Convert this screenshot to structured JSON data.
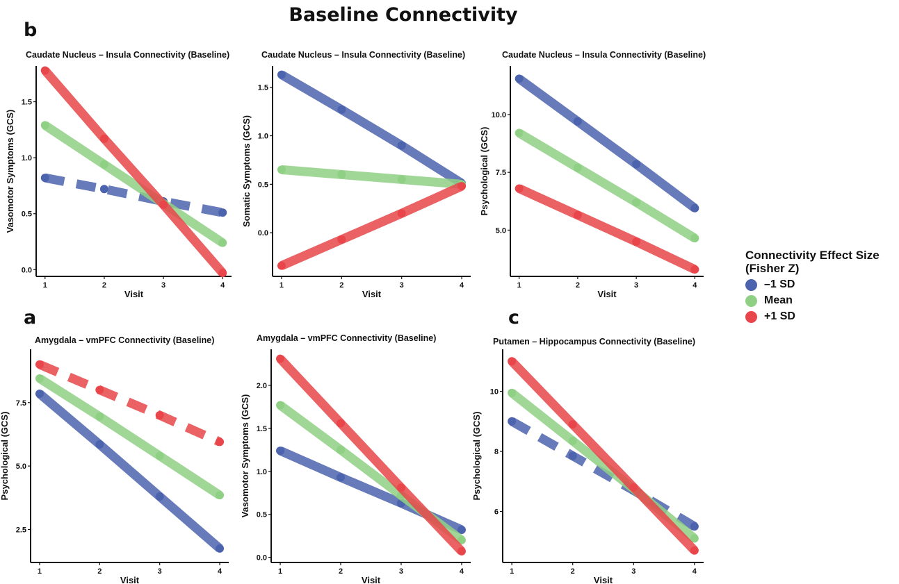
{
  "figure_title": "Baseline Connectivity",
  "panel_labels": {
    "b": "b",
    "a": "a",
    "c": "c"
  },
  "legend": {
    "title": "Connectivity Effect Size (Fisher Z)",
    "title_line1": "Connectivity Effect Size",
    "title_line2": "(Fisher Z)",
    "items": [
      {
        "label": "–1 SD",
        "color": "#4C63AD"
      },
      {
        "label": "Mean",
        "color": "#8FD085"
      },
      {
        "label": "+1 SD",
        "color": "#E8464A"
      }
    ]
  },
  "chart_data": [
    {
      "type": "line",
      "title": "Caudate Nucleus – Insula Connectivity (Baseline)",
      "xlabel": "Visit",
      "ylabel": "Vasomotor Symptoms (GCS)",
      "x": [
        1,
        2,
        3,
        4
      ],
      "xlim": [
        0.85,
        4.15
      ],
      "ylim": [
        -0.06,
        1.82
      ],
      "y_ticks": [
        0.0,
        0.5,
        1.0,
        1.5
      ],
      "y_tick_labels": [
        "0.0",
        "0.5",
        "1.0",
        "1.5"
      ],
      "series": [
        {
          "name": "–1 SD",
          "values": [
            0.82,
            0.72,
            0.61,
            0.51
          ],
          "dashed": true
        },
        {
          "name": "Mean",
          "values": [
            1.29,
            0.94,
            0.59,
            0.24
          ],
          "dashed": false
        },
        {
          "name": "+1 SD",
          "values": [
            1.78,
            1.17,
            0.58,
            -0.03
          ],
          "dashed": false
        }
      ]
    },
    {
      "type": "line",
      "title": "Caudate Nucleus – Insula Connectivity (Baseline)",
      "xlabel": "Visit",
      "ylabel": "Somatic Symptoms (GCS)",
      "x": [
        1,
        2,
        3,
        4
      ],
      "xlim": [
        0.85,
        4.15
      ],
      "ylim": [
        -0.45,
        1.72
      ],
      "y_ticks": [
        0.0,
        0.5,
        1.0,
        1.5
      ],
      "y_tick_labels": [
        "0.0",
        "0.5",
        "1.0",
        "1.5"
      ],
      "series": [
        {
          "name": "–1 SD",
          "values": [
            1.63,
            1.27,
            0.9,
            0.51
          ],
          "dashed": false
        },
        {
          "name": "Mean",
          "values": [
            0.65,
            0.6,
            0.55,
            0.5
          ],
          "dashed": false
        },
        {
          "name": "+1 SD",
          "values": [
            -0.34,
            -0.07,
            0.2,
            0.48
          ],
          "dashed": false
        }
      ]
    },
    {
      "type": "line",
      "title": "Caudate Nucleus – Insula Connectivity (Baseline)",
      "xlabel": "Visit",
      "ylabel": "Psychological (GCS)",
      "x": [
        1,
        2,
        3,
        4
      ],
      "xlim": [
        0.85,
        4.15
      ],
      "ylim": [
        3.0,
        12.1
      ],
      "y_ticks": [
        5.0,
        7.5,
        10.0
      ],
      "y_tick_labels": [
        "5.0",
        "7.5",
        "10.0"
      ],
      "series": [
        {
          "name": "–1 SD",
          "values": [
            11.55,
            9.7,
            7.85,
            5.95
          ],
          "dashed": false
        },
        {
          "name": "Mean",
          "values": [
            9.2,
            7.7,
            6.2,
            4.65
          ],
          "dashed": false
        },
        {
          "name": "+1 SD",
          "values": [
            6.8,
            5.65,
            4.5,
            3.3
          ],
          "dashed": false
        }
      ]
    },
    {
      "type": "line",
      "title": "Amygdala – vmPFC Connectivity (Baseline)",
      "xlabel": "Visit",
      "ylabel": "Psychological (GCS)",
      "x": [
        1,
        2,
        3,
        4
      ],
      "xlim": [
        0.85,
        4.15
      ],
      "ylim": [
        1.2,
        9.6
      ],
      "y_ticks": [
        2.5,
        5.0,
        7.5
      ],
      "y_tick_labels": [
        "2.5",
        "5.0",
        "7.5"
      ],
      "series": [
        {
          "name": "–1 SD",
          "values": [
            7.85,
            5.85,
            3.8,
            1.75
          ],
          "dashed": false
        },
        {
          "name": "Mean",
          "values": [
            8.45,
            6.95,
            5.4,
            3.85
          ],
          "dashed": false
        },
        {
          "name": "+1 SD",
          "values": [
            9.0,
            8.0,
            7.0,
            5.95
          ],
          "dashed": true
        }
      ]
    },
    {
      "type": "line",
      "title": "Amygdala – vmPFC Connectivity (Baseline)",
      "xlabel": "Visit",
      "ylabel": "Vasomotor Symptoms (GCS)",
      "x": [
        1,
        2,
        3,
        4
      ],
      "xlim": [
        0.85,
        4.15
      ],
      "ylim": [
        -0.06,
        2.42
      ],
      "y_ticks": [
        0.0,
        0.5,
        1.0,
        1.5,
        2.0
      ],
      "y_tick_labels": [
        "0.0",
        "0.5",
        "1.0",
        "1.5",
        "2.0"
      ],
      "series": [
        {
          "name": "–1 SD",
          "values": [
            1.24,
            0.93,
            0.63,
            0.32
          ],
          "dashed": false
        },
        {
          "name": "Mean",
          "values": [
            1.77,
            1.25,
            0.72,
            0.2
          ],
          "dashed": false
        },
        {
          "name": "+1 SD",
          "values": [
            2.31,
            1.56,
            0.81,
            0.07
          ],
          "dashed": false
        }
      ]
    },
    {
      "type": "line",
      "title": "Putamen – Hippocampus Connectivity (Baseline)",
      "xlabel": "Visit",
      "ylabel": "Psychological (GCS)",
      "x": [
        1,
        2,
        3,
        4
      ],
      "xlim": [
        0.85,
        4.15
      ],
      "ylim": [
        4.3,
        11.4
      ],
      "y_ticks": [
        6,
        8,
        10
      ],
      "y_tick_labels": [
        "6",
        "8",
        "10"
      ],
      "series": [
        {
          "name": "–1 SD",
          "values": [
            9.0,
            7.85,
            6.7,
            5.5
          ],
          "dashed": true
        },
        {
          "name": "Mean",
          "values": [
            9.95,
            8.35,
            6.75,
            5.1
          ],
          "dashed": false
        },
        {
          "name": "+1 SD",
          "values": [
            11.0,
            8.9,
            6.8,
            4.7
          ],
          "dashed": false
        }
      ]
    }
  ]
}
